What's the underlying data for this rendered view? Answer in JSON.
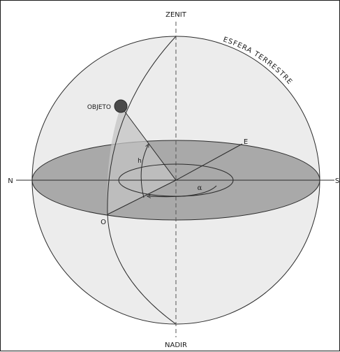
{
  "labels": {
    "zenit": "ZENIT",
    "nadir": "NADIR",
    "north": "N",
    "south": "S",
    "east": "E",
    "west": "O",
    "object": "OBJETO",
    "sphere": "ESFERA TERRESTRE",
    "altitude": "h",
    "azimuth": "α"
  },
  "colors": {
    "sphere_fill": "#ececec",
    "horizon_fill": "#a9a9a9",
    "sector_fill": "#c4c4c4",
    "object_fill": "#4a4a4a",
    "line": "#2a2a2a",
    "dashed": "#555555"
  }
}
